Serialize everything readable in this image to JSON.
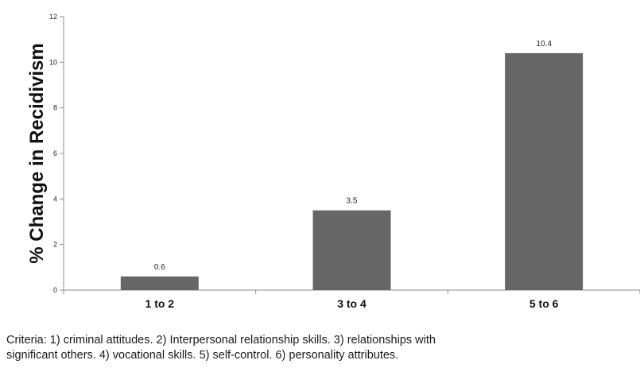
{
  "chart_data": {
    "type": "bar",
    "title": "",
    "xlabel": "",
    "ylabel": "% Change in Recidivism",
    "categories": [
      "1 to 2",
      "3 to 4",
      "5 to 6"
    ],
    "values": [
      0.6,
      3.5,
      10.4
    ],
    "data_labels": [
      "0.6",
      "3.5",
      "10.4"
    ],
    "ylim": [
      0,
      12
    ],
    "y_ticks": [
      "0",
      "2",
      "4",
      "6",
      "8",
      "10",
      "12"
    ],
    "grid": false,
    "legend": "none",
    "bar_color": "#666666"
  },
  "caption": {
    "line1": "Criteria: 1) criminal attitudes. 2) Interpersonal relationship skills. 3) relationships with",
    "line2": "significant others. 4) vocational skills. 5) self-control. 6) personality attributes."
  }
}
